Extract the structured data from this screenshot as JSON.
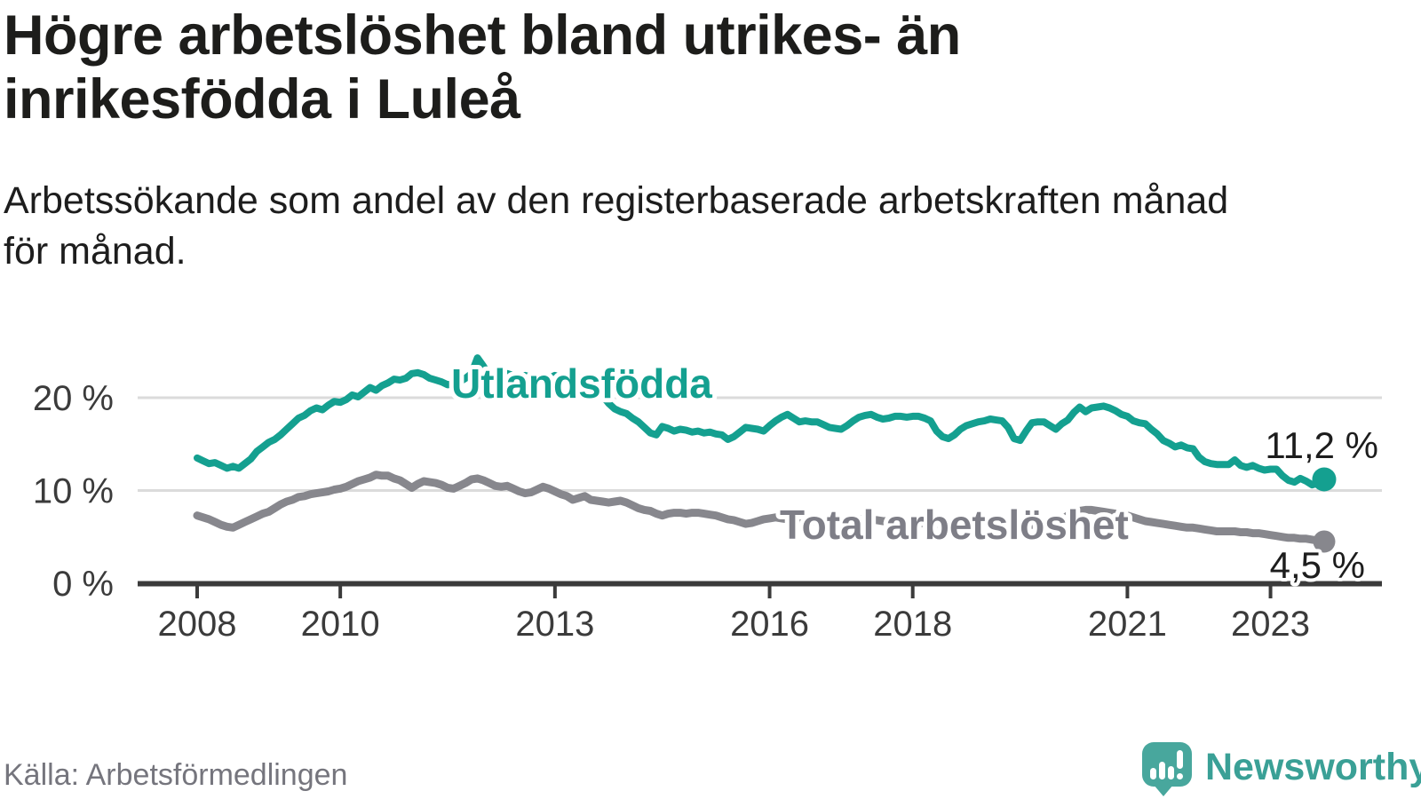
{
  "title": {
    "text": "Högre arbetslöshet bland utrikes- än inrikesfödda i Luleå",
    "lines": [
      "Högre arbetslöshet bland utrikes- än",
      "inrikesfödda i Luleå"
    ]
  },
  "subtitle": {
    "text": "Arbetssökande som andel av den registerbaserade arbetskraften månad för månad.",
    "lines": [
      "Arbetssökande som andel av den registerbaserade arbetskraften månad",
      "för månad."
    ]
  },
  "footer": {
    "source": "Källa: Arbetsförmedlingen",
    "logo_text": "Newsworthy",
    "logo_icon": "speech-bubble-bar-chart-exclamation-icon"
  },
  "colors": {
    "accent_teal": "#14a090",
    "series_gray": "#87878d",
    "gray_label": "#7e7e87",
    "axis": "#3b3b3b",
    "grid": "#dbdbdb",
    "title_text": "#1d1d1b",
    "value_label": "#1d1d1d",
    "source_gray": "#75757d",
    "logo_teal": "#48a79d",
    "logo_text_teal": "#3aa096"
  },
  "chart_data": {
    "type": "line",
    "title": "Högre arbetslöshet bland utrikes- än inrikesfödda i Luleå",
    "subtitle": "Arbetssökande som andel av den registerbaserade arbetskraften månad för månad.",
    "xlabel": "",
    "ylabel": "",
    "unit": "%",
    "x_start_year": 2008,
    "x_step_months": 1,
    "x_end": "2023 (okt)",
    "xlim": [
      2007.2,
      2024.3
    ],
    "ylim": [
      0,
      25.5
    ],
    "grid": "horizontal",
    "legend_position": "inline-labels",
    "x_ticks": [
      {
        "year": 2008,
        "label": "2008"
      },
      {
        "year": 2010,
        "label": "2010"
      },
      {
        "year": 2013,
        "label": "2013"
      },
      {
        "year": 2016,
        "label": "2016"
      },
      {
        "year": 2018,
        "label": "2018"
      },
      {
        "year": 2021,
        "label": "2021"
      },
      {
        "year": 2023,
        "label": "2023"
      }
    ],
    "y_ticks": [
      {
        "value": 0,
        "label": "0 %"
      },
      {
        "value": 10,
        "label": "10 %"
      },
      {
        "value": 20,
        "label": "20 %"
      }
    ],
    "series": [
      {
        "name": "Utlandsfödda",
        "color": "#14a090",
        "end_label": "11,2 %",
        "end_value": 11.2,
        "values": [
          13.5,
          13.2,
          12.9,
          13,
          12.7,
          12.4,
          12.6,
          12.4,
          12.9,
          13.4,
          14.2,
          14.7,
          15.2,
          15.5,
          16,
          16.6,
          17.2,
          17.8,
          18.1,
          18.6,
          18.9,
          18.7,
          19.2,
          19.6,
          19.5,
          19.8,
          20.3,
          20.1,
          20.6,
          21.1,
          20.8,
          21.3,
          21.6,
          22,
          21.9,
          22.1,
          22.6,
          22.7,
          22.5,
          22.1,
          21.9,
          21.7,
          21.4,
          21.5,
          21.7,
          22.1,
          22.6,
          24.3,
          23.4,
          22.4,
          22.1,
          22.3,
          22.6,
          22.4,
          22.2,
          22.4,
          22.2,
          22,
          22.3,
          22.1,
          22.4,
          22.2,
          22.4,
          22.3,
          22.2,
          22,
          21.8,
          21,
          20.2,
          19.4,
          18.8,
          18.5,
          18.3,
          17.8,
          17.4,
          16.8,
          16.2,
          16,
          16.9,
          16.7,
          16.4,
          16.6,
          16.5,
          16.3,
          16.4,
          16.2,
          16.3,
          16.1,
          16,
          15.5,
          15.8,
          16.3,
          16.8,
          16.7,
          16.6,
          16.4,
          17,
          17.5,
          17.9,
          18.2,
          17.8,
          17.4,
          17.5,
          17.4,
          17.4,
          17.1,
          16.8,
          16.7,
          16.6,
          17,
          17.5,
          17.9,
          18.1,
          18.2,
          17.9,
          17.7,
          17.8,
          18,
          18,
          17.9,
          18,
          18,
          17.8,
          17.5,
          16.4,
          15.8,
          15.6,
          16,
          16.6,
          17,
          17.2,
          17.4,
          17.5,
          17.7,
          17.6,
          17.5,
          16.8,
          15.6,
          15.4,
          16.4,
          17.3,
          17.4,
          17.4,
          17,
          16.6,
          17.2,
          17.6,
          18.4,
          19,
          18.5,
          18.9,
          19,
          19.1,
          18.9,
          18.6,
          18.2,
          18,
          17.5,
          17.3,
          17.2,
          16.6,
          16.1,
          15.4,
          15.1,
          14.7,
          14.9,
          14.6,
          14.5,
          13.6,
          13.1,
          12.9,
          12.8,
          12.8,
          12.8,
          13.3,
          12.7,
          12.5,
          12.7,
          12.4,
          12.2,
          12.3,
          12.3,
          11.6,
          11.1,
          10.9,
          11.3,
          11,
          10.6,
          10.8,
          11.2
        ]
      },
      {
        "name": "Total arbetslöshet",
        "color": "#87878d",
        "end_label": "4,5 %",
        "end_value": 4.5,
        "values": [
          7.3,
          7.1,
          6.9,
          6.6,
          6.3,
          6.1,
          6,
          6.3,
          6.6,
          6.9,
          7.2,
          7.5,
          7.7,
          8.1,
          8.5,
          8.8,
          9,
          9.3,
          9.4,
          9.6,
          9.7,
          9.8,
          9.9,
          10.1,
          10.2,
          10.4,
          10.7,
          11,
          11.2,
          11.4,
          11.7,
          11.6,
          11.6,
          11.3,
          11.1,
          10.7,
          10.3,
          10.7,
          11,
          10.9,
          10.8,
          10.6,
          10.3,
          10.2,
          10.5,
          10.8,
          11.2,
          11.3,
          11.1,
          10.8,
          10.5,
          10.4,
          10.5,
          10.2,
          9.9,
          9.7,
          9.8,
          10.1,
          10.4,
          10.2,
          9.9,
          9.6,
          9.4,
          9,
          9.2,
          9.4,
          9,
          8.9,
          8.8,
          8.7,
          8.8,
          8.9,
          8.7,
          8.4,
          8.1,
          7.9,
          7.8,
          7.5,
          7.3,
          7.5,
          7.6,
          7.6,
          7.5,
          7.6,
          7.6,
          7.5,
          7.4,
          7.3,
          7.1,
          6.9,
          6.8,
          6.6,
          6.4,
          6.5,
          6.7,
          6.9,
          7,
          7.1,
          7,
          6.9,
          6.9,
          6.8,
          6.8,
          6.7,
          6.7,
          6.6,
          6.6,
          6.7,
          6.7,
          6.8,
          6.8,
          6.9,
          6.9,
          6.8,
          6.8,
          6.7,
          6.7,
          6.6,
          6.6,
          6.6,
          6.6,
          6.5,
          6.5,
          6.4,
          6.4,
          6.3,
          6.3,
          6.3,
          6.3,
          6.4,
          6.4,
          6.4,
          6.4,
          6.3,
          6.3,
          6.2,
          6.2,
          6.2,
          6.2,
          6.3,
          6.3,
          6.3,
          6.3,
          6.4,
          6.5,
          6.8,
          7.3,
          7.6,
          7.8,
          7.9,
          7.9,
          7.8,
          7.7,
          7.6,
          7.5,
          7.4,
          7.3,
          7.1,
          6.9,
          6.7,
          6.6,
          6.5,
          6.4,
          6.3,
          6.2,
          6.1,
          6,
          6,
          5.9,
          5.8,
          5.7,
          5.6,
          5.6,
          5.6,
          5.6,
          5.5,
          5.5,
          5.4,
          5.4,
          5.3,
          5.2,
          5.1,
          5,
          4.9,
          4.9,
          4.8,
          4.8,
          4.7,
          4.6,
          4.5
        ]
      }
    ]
  }
}
